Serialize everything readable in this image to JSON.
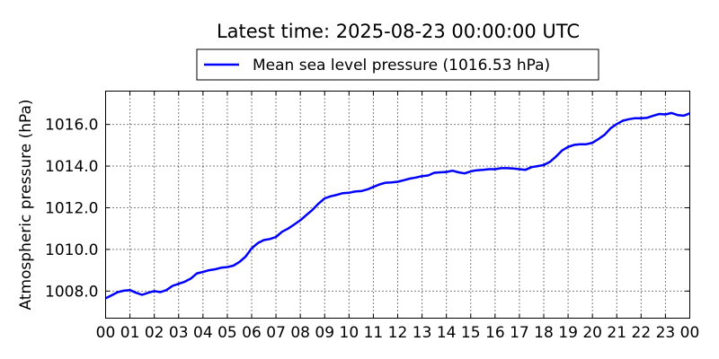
{
  "chart_data": {
    "type": "line",
    "title": "Latest time: 2025-08-23 00:00:00 UTC",
    "xlabel": "",
    "ylabel": "Atmospheric pressure (hPa)",
    "xlim": [
      0,
      24
    ],
    "ylim": [
      1006.7,
      1017.6
    ],
    "grid": true,
    "grid_style": "dotted",
    "legend_position": "top-center",
    "x_ticks": [
      {
        "value": 0,
        "label": "00"
      },
      {
        "value": 1,
        "label": "01"
      },
      {
        "value": 2,
        "label": "02"
      },
      {
        "value": 3,
        "label": "03"
      },
      {
        "value": 4,
        "label": "04"
      },
      {
        "value": 5,
        "label": "05"
      },
      {
        "value": 6,
        "label": "06"
      },
      {
        "value": 7,
        "label": "07"
      },
      {
        "value": 8,
        "label": "08"
      },
      {
        "value": 9,
        "label": "09"
      },
      {
        "value": 10,
        "label": "10"
      },
      {
        "value": 11,
        "label": "11"
      },
      {
        "value": 12,
        "label": "12"
      },
      {
        "value": 13,
        "label": "13"
      },
      {
        "value": 14,
        "label": "14"
      },
      {
        "value": 15,
        "label": "15"
      },
      {
        "value": 16,
        "label": "16"
      },
      {
        "value": 17,
        "label": "17"
      },
      {
        "value": 18,
        "label": "18"
      },
      {
        "value": 19,
        "label": "19"
      },
      {
        "value": 20,
        "label": "20"
      },
      {
        "value": 21,
        "label": "21"
      },
      {
        "value": 22,
        "label": "22"
      },
      {
        "value": 23,
        "label": "23"
      },
      {
        "value": 24,
        "label": "00"
      }
    ],
    "y_ticks": [
      {
        "value": 1008,
        "label": "1008.0"
      },
      {
        "value": 1010,
        "label": "1010.0"
      },
      {
        "value": 1012,
        "label": "1012.0"
      },
      {
        "value": 1014,
        "label": "1014.0"
      },
      {
        "value": 1016,
        "label": "1016.0"
      }
    ],
    "series": [
      {
        "name": "Mean sea level pressure (1016.53 hPa)",
        "color": "#0000ff",
        "x": [
          0,
          0.25,
          0.5,
          0.75,
          1,
          1.25,
          1.5,
          1.75,
          2,
          2.25,
          2.5,
          2.75,
          3,
          3.25,
          3.5,
          3.75,
          4,
          4.25,
          4.5,
          4.75,
          5,
          5.25,
          5.5,
          5.75,
          6,
          6.25,
          6.5,
          6.75,
          7,
          7.25,
          7.5,
          7.75,
          8,
          8.25,
          8.5,
          8.75,
          9,
          9.25,
          9.5,
          9.75,
          10,
          10.25,
          10.5,
          10.75,
          11,
          11.25,
          11.5,
          11.75,
          12,
          12.25,
          12.5,
          12.75,
          13,
          13.25,
          13.5,
          13.75,
          14,
          14.25,
          14.5,
          14.75,
          15,
          15.25,
          15.5,
          15.75,
          16,
          16.25,
          16.5,
          16.75,
          17,
          17.25,
          17.5,
          17.75,
          18,
          18.25,
          18.5,
          18.75,
          19,
          19.25,
          19.5,
          19.75,
          20,
          20.25,
          20.5,
          20.75,
          21,
          21.25,
          21.5,
          21.75,
          22,
          22.25,
          22.5,
          22.75,
          23,
          23.25,
          23.5,
          23.75,
          24
        ],
        "y": [
          1007.65,
          1007.8,
          1007.95,
          1008.02,
          1008.05,
          1007.92,
          1007.82,
          1007.92,
          1008.0,
          1007.95,
          1008.05,
          1008.25,
          1008.35,
          1008.45,
          1008.6,
          1008.85,
          1008.92,
          1009.0,
          1009.05,
          1009.12,
          1009.15,
          1009.22,
          1009.4,
          1009.65,
          1010.05,
          1010.3,
          1010.45,
          1010.5,
          1010.6,
          1010.85,
          1011.0,
          1011.2,
          1011.4,
          1011.65,
          1011.9,
          1012.2,
          1012.45,
          1012.55,
          1012.62,
          1012.7,
          1012.72,
          1012.78,
          1012.8,
          1012.88,
          1013.0,
          1013.12,
          1013.2,
          1013.22,
          1013.25,
          1013.32,
          1013.4,
          1013.45,
          1013.52,
          1013.55,
          1013.68,
          1013.7,
          1013.72,
          1013.78,
          1013.7,
          1013.65,
          1013.75,
          1013.8,
          1013.82,
          1013.85,
          1013.85,
          1013.9,
          1013.9,
          1013.88,
          1013.85,
          1013.82,
          1013.95,
          1014.0,
          1014.05,
          1014.2,
          1014.45,
          1014.75,
          1014.92,
          1015.02,
          1015.05,
          1015.05,
          1015.12,
          1015.3,
          1015.5,
          1015.82,
          1016.02,
          1016.18,
          1016.25,
          1016.3,
          1016.3,
          1016.32,
          1016.42,
          1016.5,
          1016.48,
          1016.55,
          1016.45,
          1016.42,
          1016.53
        ]
      }
    ]
  }
}
